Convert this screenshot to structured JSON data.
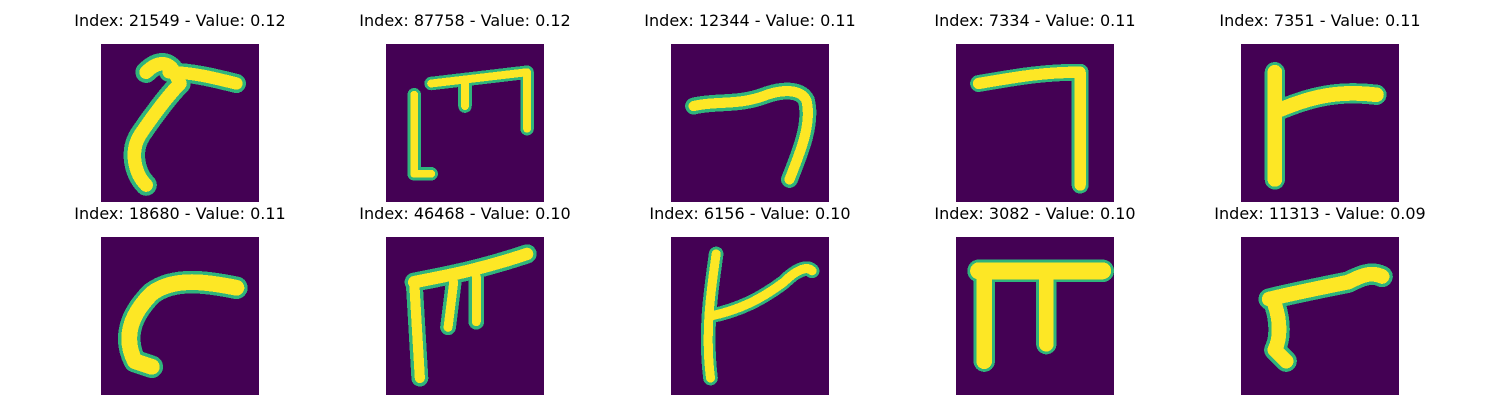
{
  "figure": {
    "colors": {
      "background": "#440154",
      "stroke_edge": "#2fb47c",
      "stroke_fill": "#fde725"
    },
    "panels": [
      {
        "title": "Index: 21549 - Value: 0.12",
        "index": 21549,
        "value": 0.12
      },
      {
        "title": "Index: 87758 - Value: 0.12",
        "index": 87758,
        "value": 0.12
      },
      {
        "title": "Index: 12344 - Value: 0.11",
        "index": 12344,
        "value": 0.11
      },
      {
        "title": "Index: 7334 - Value: 0.11",
        "index": 7334,
        "value": 0.11
      },
      {
        "title": "Index: 7351 - Value: 0.11",
        "index": 7351,
        "value": 0.11
      },
      {
        "title": "Index: 18680 - Value: 0.11",
        "index": 18680,
        "value": 0.11
      },
      {
        "title": "Index: 46468 - Value: 0.10",
        "index": 46468,
        "value": 0.1
      },
      {
        "title": "Index: 6156 - Value: 0.10",
        "index": 6156,
        "value": 0.1
      },
      {
        "title": "Index: 3082 - Value: 0.10",
        "index": 3082,
        "value": 0.1
      },
      {
        "title": "Index: 11313 - Value: 0.09",
        "index": 11313,
        "value": 0.09
      }
    ]
  }
}
